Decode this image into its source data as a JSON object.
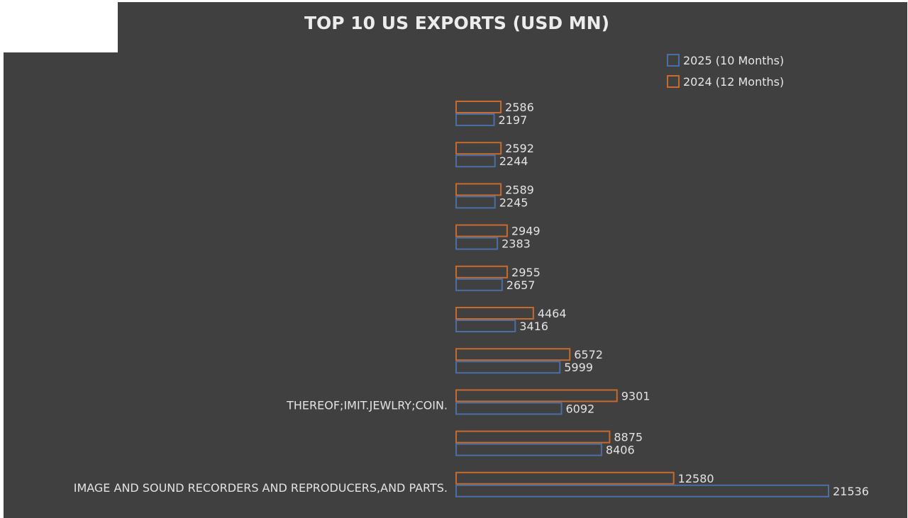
{
  "colors": {
    "background": "#404040",
    "series_2025": "#4a6fa5",
    "series_2024": "#c76a2b"
  },
  "chart_data": {
    "type": "bar",
    "orientation": "horizontal",
    "title": "TOP 10 US EXPORTS (USD MN)",
    "legend_position": "top-right",
    "grid": false,
    "categories": [
      "",
      "",
      "",
      "",
      "",
      "",
      "",
      "THEREOF;IMIT.JEWLRY;COIN.",
      "",
      "IMAGE AND SOUND RECORDERS AND REPRODUCERS,AND PARTS."
    ],
    "series": [
      {
        "name": "2024 (12 Months)",
        "color": "#c76a2b",
        "values": [
          2586,
          2592,
          2589,
          2949,
          2955,
          4464,
          6572,
          9301,
          8875,
          12580
        ]
      },
      {
        "name": "2025 (10 Months)",
        "color": "#4a6fa5",
        "values": [
          2197,
          2244,
          2245,
          2383,
          2657,
          3416,
          5999,
          6092,
          8406,
          21536
        ]
      }
    ],
    "legend_order": [
      "2025 (10 Months)",
      "2024 (12 Months)"
    ],
    "xlim": [
      0,
      21536
    ]
  }
}
